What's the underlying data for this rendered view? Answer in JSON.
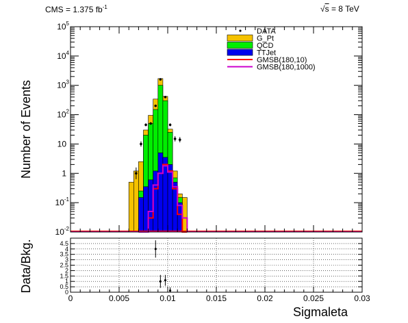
{
  "header": {
    "lumi_label": "CMS = 1.375 fb",
    "lumi_unit_sup": "-1",
    "energy_sqrt": "s",
    "energy_label": "= 8 TeV"
  },
  "chart_data": [
    {
      "type": "bar",
      "subtype": "stacked-histogram-log",
      "xlabel": "Sigmaleta",
      "ylabel": "Number of Events",
      "xlim": [
        0,
        0.03
      ],
      "ylim": [
        0.01,
        100000
      ],
      "yscale": "log",
      "bin_edges": [
        0.006,
        0.0065,
        0.007,
        0.0075,
        0.008,
        0.0085,
        0.009,
        0.0095,
        0.01,
        0.0105,
        0.011,
        0.0115,
        0.012
      ],
      "legend_position": "top-right",
      "grid": false,
      "colors": {
        "G_Pt": "#f5c200",
        "QCD": "#00ee00",
        "TTJet": "#0000ee",
        "GMSB(180,10)": "#ff0000",
        "GMSB(180,1000)": "#cc00cc",
        "DATA": "#000000"
      },
      "yticks": [
        {
          "v": 0.01,
          "base": "10",
          "exp": "-2"
        },
        {
          "v": 0.1,
          "base": "10",
          "exp": "-1"
        },
        {
          "v": 1,
          "base": "1",
          "exp": ""
        },
        {
          "v": 10,
          "base": "10",
          "exp": ""
        },
        {
          "v": 100,
          "base": "10",
          "exp": "2"
        },
        {
          "v": 1000,
          "base": "10",
          "exp": "3"
        },
        {
          "v": 10000,
          "base": "10",
          "exp": "4"
        },
        {
          "v": 100000,
          "base": "10",
          "exp": "5"
        }
      ],
      "stack_totals": [
        {
          "name": "G_Pt",
          "values": [
            0.5,
            1.2,
            2.5,
            30,
            95,
            340,
            1700,
            420,
            32,
            1.2,
            0.2,
            0.15
          ]
        },
        {
          "name": "QCD",
          "values": [
            0.01,
            0.01,
            0.25,
            20,
            50,
            150,
            1000,
            300,
            25,
            0.7,
            0.15,
            0.01
          ]
        },
        {
          "name": "TTJet",
          "values": [
            0.01,
            0.01,
            0.15,
            0.35,
            0.6,
            1.2,
            5,
            3.5,
            2,
            0.5,
            0.1,
            0.01
          ]
        }
      ],
      "series": [
        {
          "name": "DATA",
          "style": "markers",
          "x": [
            0.00675,
            0.00725,
            0.00775,
            0.00825,
            0.00875,
            0.00925,
            0.00975,
            0.01025,
            0.01075,
            0.01125
          ],
          "values": [
            1,
            10,
            45,
            50,
            200,
            1600,
            400,
            45,
            15,
            14
          ],
          "yerr_log_half": [
            0.2,
            0.09,
            0.05,
            0.04,
            0.02,
            0.01,
            0.02,
            0.05,
            0.09,
            0.09
          ]
        },
        {
          "name": "GMSB(180,10)",
          "style": "step",
          "values": [
            0.01,
            0.01,
            0.03,
            0.3,
            1.0,
            2.0,
            1.2,
            0.3,
            0.04,
            0.01
          ]
        },
        {
          "name": "GMSB(180,1000)",
          "style": "step",
          "values": [
            0.01,
            0.01,
            0.05,
            0.4,
            1.0,
            1.8,
            1.1,
            0.35,
            0.08,
            0.03
          ]
        }
      ],
      "bin_range_signal": [
        0.007,
        0.012
      ]
    },
    {
      "type": "scatter",
      "xlabel": "Sigmaleta",
      "ylabel": "Data/Bkg.",
      "xlim": [
        0,
        0.03
      ],
      "ylim": [
        0,
        5
      ],
      "grid": true,
      "xticks": [
        {
          "v": 0,
          "label": "0"
        },
        {
          "v": 0.005,
          "label": "0.005"
        },
        {
          "v": 0.01,
          "label": "0.01"
        },
        {
          "v": 0.015,
          "label": "0.015"
        },
        {
          "v": 0.02,
          "label": "0.02"
        },
        {
          "v": 0.025,
          "label": "0.025"
        },
        {
          "v": 0.03,
          "label": "0.03"
        }
      ],
      "yticks": [
        "0",
        "0.5",
        "1",
        "1.5",
        "2",
        "2.5",
        "3",
        "3.5",
        "4",
        "4.5"
      ],
      "ytick_values": [
        0,
        0.5,
        1,
        1.5,
        2,
        2.5,
        3,
        3.5,
        4,
        4.5
      ],
      "series": [
        {
          "name": "ratio",
          "x": [
            0.00875,
            0.00925,
            0.00975,
            0.01025
          ],
          "values": [
            4.0,
            1.0,
            1.1,
            0.15
          ],
          "yerr": [
            0.8,
            0.6,
            0.5,
            0.3
          ]
        }
      ]
    }
  ]
}
